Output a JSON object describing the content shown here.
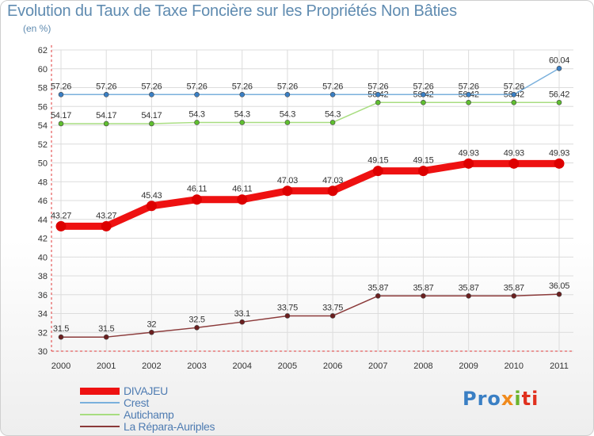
{
  "chart_data": {
    "type": "line",
    "title": "Evolution du Taux de Taxe Foncière sur les Propriétés Non Bâties",
    "subtitle": "(en %)",
    "xlabel": "",
    "ylabel": "",
    "ylim": [
      30,
      62
    ],
    "y_ticks": [
      30,
      32,
      34,
      36,
      38,
      40,
      42,
      44,
      46,
      48,
      50,
      52,
      54,
      56,
      58,
      60,
      62
    ],
    "grid": true,
    "legend_position": "bottom-left",
    "categories": [
      "2000",
      "2001",
      "2002",
      "2003",
      "2004",
      "2005",
      "2006",
      "2007",
      "2008",
      "2009",
      "2010",
      "2011"
    ],
    "series": [
      {
        "name": "DIVAJEU",
        "color": "#ee1111",
        "marker_color": "#dd0000",
        "values": [
          43.27,
          43.27,
          45.43,
          46.11,
          46.11,
          47.03,
          47.03,
          49.15,
          49.15,
          49.93,
          49.93,
          49.93
        ],
        "labels": [
          "43.27",
          "43.27",
          "45.43",
          "46.11",
          "46.11",
          "47.03",
          "47.03",
          "49.15",
          "49.15",
          "49.93",
          "49.93",
          "49.93"
        ]
      },
      {
        "name": "Crest",
        "color": "#7ab0dc",
        "marker_color": "#3a7fc4",
        "values": [
          57.26,
          57.26,
          57.26,
          57.26,
          57.26,
          57.26,
          57.26,
          57.26,
          57.26,
          57.26,
          57.26,
          60.04
        ],
        "labels": [
          "57.26",
          "57.26",
          "57.26",
          "57.26",
          "57.26",
          "57.26",
          "57.26",
          "57.26",
          "57.26",
          "57.26",
          "57.26",
          "60.04"
        ]
      },
      {
        "name": "Autichamp",
        "color": "#a8dd80",
        "marker_color": "#5fbf2f",
        "values": [
          54.17,
          54.17,
          54.17,
          54.3,
          54.3,
          54.3,
          54.3,
          56.42,
          56.42,
          56.42,
          56.42,
          56.42
        ],
        "labels": [
          "54.17",
          "54.17",
          "54.17",
          "54.3",
          "54.3",
          "54.3",
          "54.3",
          "56.42",
          "56.42",
          "56.42",
          "56.42",
          "56.42"
        ]
      },
      {
        "name": "La Répara-Auriples",
        "color": "#8b3a3a",
        "marker_color": "#6b1f1f",
        "values": [
          31.5,
          31.5,
          32,
          32.5,
          33.1,
          33.75,
          33.75,
          35.87,
          35.87,
          35.87,
          35.87,
          36.05
        ],
        "labels": [
          "31.5",
          "31.5",
          "32",
          "32.5",
          "33.1",
          "33.75",
          "33.75",
          "35.87",
          "35.87",
          "35.87",
          "35.87",
          "36.05"
        ]
      }
    ]
  },
  "logo": {
    "part1": "Pro",
    "part2": "x",
    "part3": "i",
    "part4": "ti"
  }
}
